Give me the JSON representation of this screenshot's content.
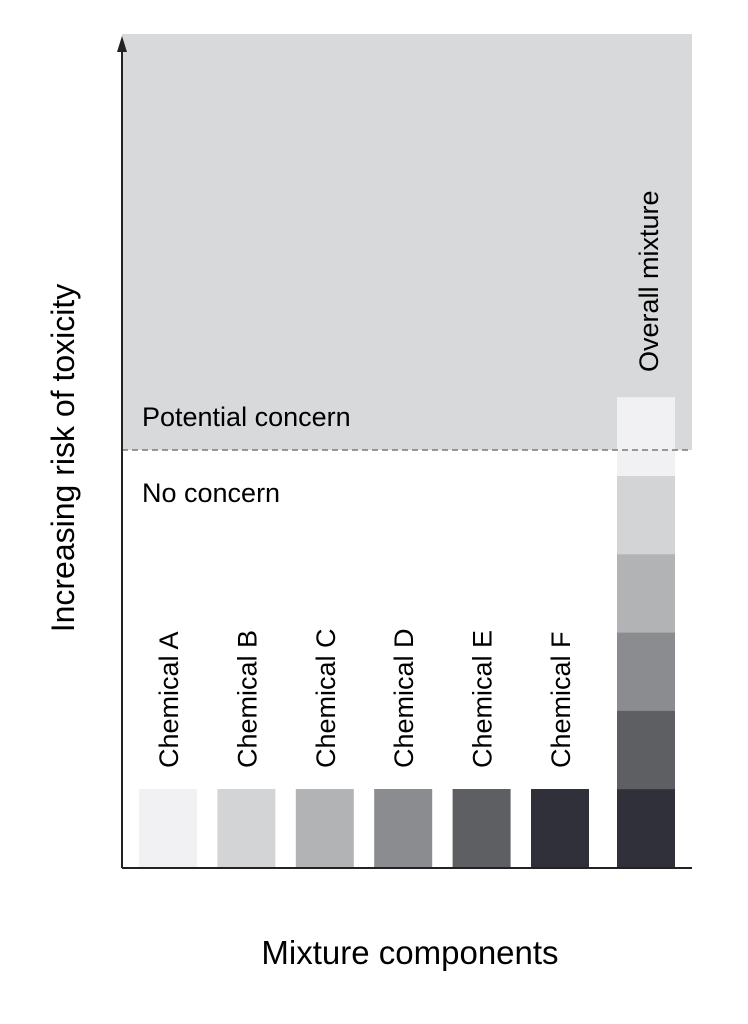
{
  "axes": {
    "y_label": "Increasing risk of toxicity",
    "x_label": "Mixture components"
  },
  "zones": {
    "upper_label": "Potential concern",
    "lower_label": "No concern",
    "upper_color": "#d8d9db",
    "lower_color": "#ffffff",
    "threshold_line_color": "#7a7a7a"
  },
  "chemicals": [
    {
      "label": "Chemical A",
      "color": "#f1f1f3"
    },
    {
      "label": "Chemical B",
      "color": "#d3d4d6"
    },
    {
      "label": "Chemical C",
      "color": "#b2b3b5"
    },
    {
      "label": "Chemical D",
      "color": "#8b8c8f"
    },
    {
      "label": "Chemical E",
      "color": "#5e5f63"
    },
    {
      "label": "Chemical F",
      "color": "#2f3039"
    }
  ],
  "overall": {
    "label": "Overall mixture",
    "stack_order_bottom_to_top": [
      "Chemical F",
      "Chemical E",
      "Chemical D",
      "Chemical C",
      "Chemical B",
      "Chemical A"
    ]
  }
}
